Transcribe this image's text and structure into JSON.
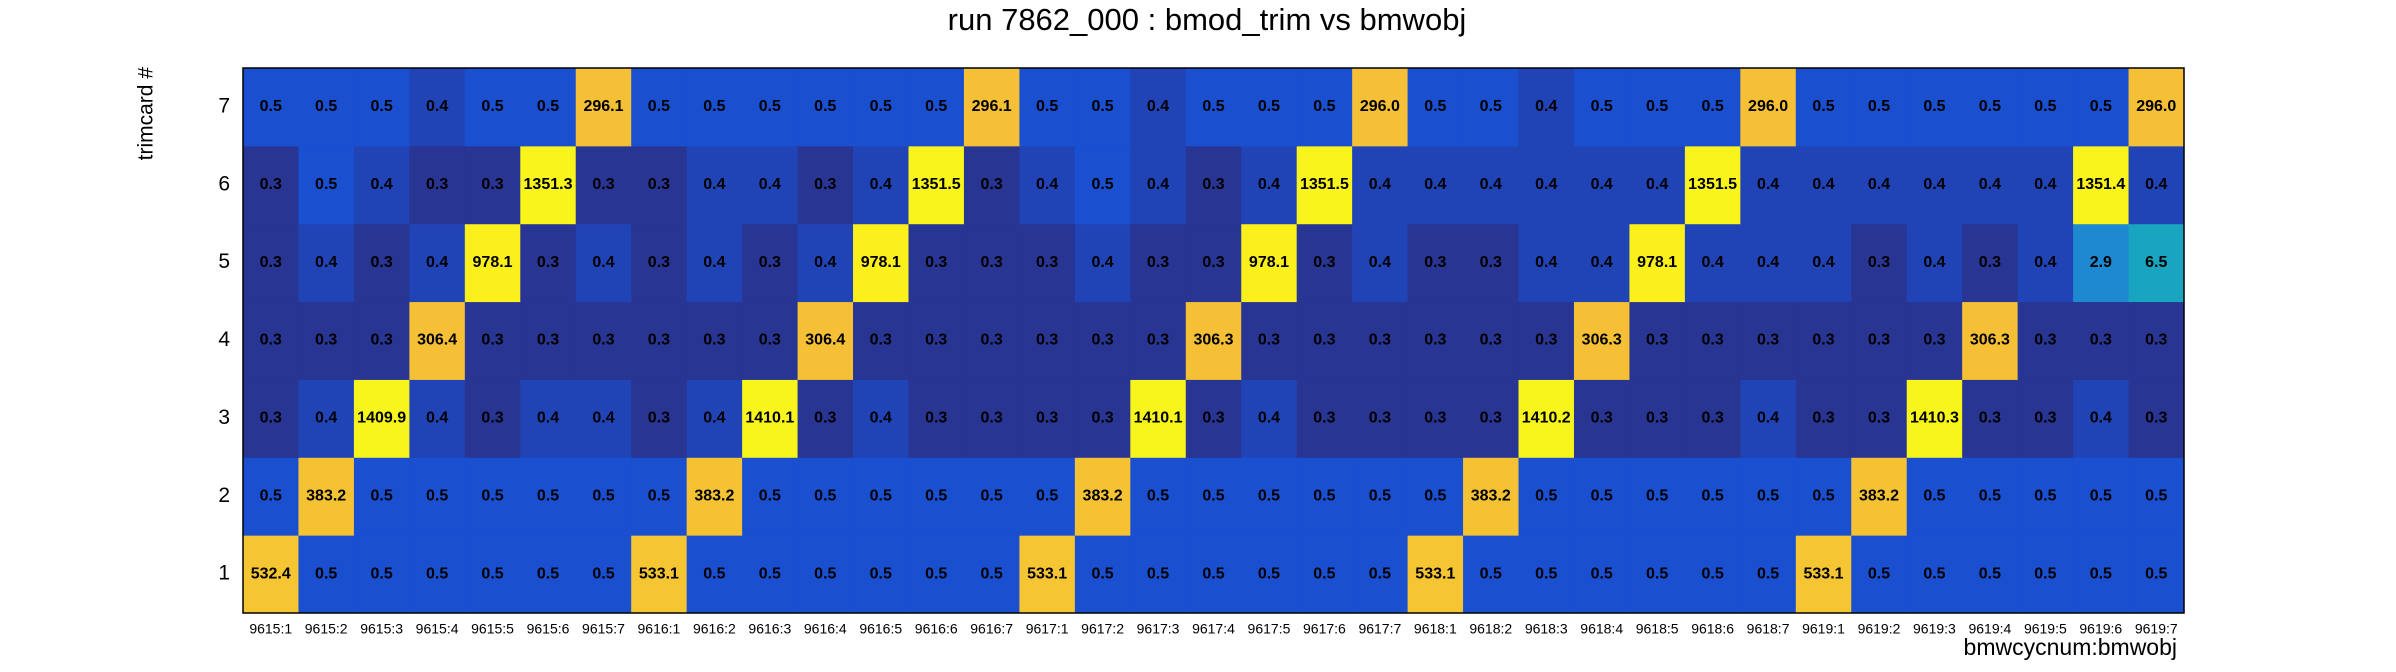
{
  "chart_data": {
    "type": "heatmap",
    "title": "run 7862_000 : bmod_trim vs bmwobj",
    "x_label": "bmwcycnum:bmwobj",
    "y_label": "trimcard #",
    "log_z": true,
    "palette": [
      "#283593",
      "#1a4fd0",
      "#1e88d0",
      "#17a5c0",
      "#f5bf35",
      "#f5c633",
      "#fbee1c",
      "#f8f51c"
    ],
    "categories": [
      "9615:1",
      "9615:2",
      "9615:3",
      "9615:4",
      "9615:5",
      "9615:6",
      "9615:7",
      "9616:1",
      "9616:2",
      "9616:3",
      "9616:4",
      "9616:5",
      "9616:6",
      "9616:7",
      "9617:1",
      "9617:2",
      "9617:3",
      "9617:4",
      "9617:5",
      "9617:6",
      "9617:7",
      "9618:1",
      "9618:2",
      "9618:3",
      "9618:4",
      "9618:5",
      "9618:6",
      "9618:7",
      "9619:1",
      "9619:2",
      "9619:3",
      "9619:4",
      "9619:5",
      "9619:6",
      "9619:7"
    ],
    "y": [
      "1",
      "2",
      "3",
      "4",
      "5",
      "6",
      "7"
    ],
    "values": [
      [
        532.4,
        0.5,
        0.5,
        0.5,
        0.5,
        0.5,
        0.5,
        533.1,
        0.5,
        0.5,
        0.5,
        0.5,
        0.5,
        0.5,
        533.1,
        0.5,
        0.5,
        0.5,
        0.5,
        0.5,
        0.5,
        533.1,
        0.5,
        0.5,
        0.5,
        0.5,
        0.5,
        0.5,
        533.1,
        0.5,
        0.5,
        0.5,
        0.5,
        0.5,
        0.5
      ],
      [
        0.5,
        383.2,
        0.5,
        0.5,
        0.5,
        0.5,
        0.5,
        0.5,
        383.2,
        0.5,
        0.5,
        0.5,
        0.5,
        0.5,
        0.5,
        383.2,
        0.5,
        0.5,
        0.5,
        0.5,
        0.5,
        0.5,
        383.2,
        0.5,
        0.5,
        0.5,
        0.5,
        0.5,
        0.5,
        383.2,
        0.5,
        0.5,
        0.5,
        0.5,
        0.5
      ],
      [
        0.3,
        0.4,
        1409.9,
        0.4,
        0.3,
        0.4,
        0.4,
        0.3,
        0.4,
        1410.1,
        0.3,
        0.4,
        0.3,
        0.3,
        0.3,
        0.3,
        1410.1,
        0.3,
        0.4,
        0.3,
        0.3,
        0.3,
        0.3,
        1410.2,
        0.3,
        0.3,
        0.3,
        0.4,
        0.3,
        0.3,
        1410.3,
        0.3,
        0.3,
        0.4,
        0.3
      ],
      [
        0.3,
        0.3,
        0.3,
        306.4,
        0.3,
        0.3,
        0.3,
        0.3,
        0.3,
        0.3,
        306.4,
        0.3,
        0.3,
        0.3,
        0.3,
        0.3,
        0.3,
        306.3,
        0.3,
        0.3,
        0.3,
        0.3,
        0.3,
        0.3,
        306.3,
        0.3,
        0.3,
        0.3,
        0.3,
        0.3,
        0.3,
        306.3,
        0.3,
        0.3,
        0.3
      ],
      [
        0.3,
        0.4,
        0.3,
        0.4,
        978.1,
        0.3,
        0.4,
        0.3,
        0.4,
        0.3,
        0.4,
        978.1,
        0.3,
        0.3,
        0.3,
        0.4,
        0.3,
        0.3,
        978.1,
        0.3,
        0.4,
        0.3,
        0.3,
        0.4,
        0.4,
        978.1,
        0.4,
        0.4,
        0.4,
        0.3,
        0.4,
        0.3,
        0.4,
        2.9,
        6.5
      ],
      [
        0.3,
        0.5,
        0.4,
        0.3,
        0.3,
        1351.3,
        0.3,
        0.3,
        0.4,
        0.4,
        0.3,
        0.4,
        1351.5,
        0.3,
        0.4,
        0.5,
        0.4,
        0.3,
        0.4,
        1351.5,
        0.4,
        0.4,
        0.4,
        0.4,
        0.4,
        0.4,
        1351.5,
        0.4,
        0.4,
        0.4,
        0.4,
        0.4,
        0.4,
        1351.4,
        0.4
      ],
      [
        0.5,
        0.5,
        0.5,
        0.4,
        0.5,
        0.5,
        296.1,
        0.5,
        0.5,
        0.5,
        0.5,
        0.5,
        0.5,
        296.1,
        0.5,
        0.5,
        0.4,
        0.5,
        0.5,
        0.5,
        296.0,
        0.5,
        0.5,
        0.4,
        0.5,
        0.5,
        0.5,
        296.0,
        0.5,
        0.5,
        0.5,
        0.5,
        0.5,
        0.5,
        296.0
      ]
    ],
    "value_labels": [
      [
        "532.4",
        "0.5",
        "0.5",
        "0.5",
        "0.5",
        "0.5",
        "0.5",
        "533.1",
        "0.5",
        "0.5",
        "0.5",
        "0.5",
        "0.5",
        "0.5",
        "533.1",
        "0.5",
        "0.5",
        "0.5",
        "0.5",
        "0.5",
        "0.5",
        "533.1",
        "0.5",
        "0.5",
        "0.5",
        "0.5",
        "0.5",
        "0.5",
        "533.1",
        "0.5",
        "0.5",
        "0.5",
        "0.5",
        "0.5",
        "0.5"
      ],
      [
        "0.5",
        "383.2",
        "0.5",
        "0.5",
        "0.5",
        "0.5",
        "0.5",
        "0.5",
        "383.2",
        "0.5",
        "0.5",
        "0.5",
        "0.5",
        "0.5",
        "0.5",
        "383.2",
        "0.5",
        "0.5",
        "0.5",
        "0.5",
        "0.5",
        "0.5",
        "383.2",
        "0.5",
        "0.5",
        "0.5",
        "0.5",
        "0.5",
        "0.5",
        "383.2",
        "0.5",
        "0.5",
        "0.5",
        "0.5",
        "0.5"
      ],
      [
        "0.3",
        "0.4",
        "1409.9",
        "0.4",
        "0.3",
        "0.4",
        "0.4",
        "0.3",
        "0.4",
        "1410.1",
        "0.3",
        "0.4",
        "0.3",
        "0.3",
        "0.3",
        "0.3",
        "1410.1",
        "0.3",
        "0.4",
        "0.3",
        "0.3",
        "0.3",
        "0.3",
        "1410.2",
        "0.3",
        "0.3",
        "0.3",
        "0.4",
        "0.3",
        "0.3",
        "1410.3",
        "0.3",
        "0.3",
        "0.4",
        "0.3"
      ],
      [
        "0.3",
        "0.3",
        "0.3",
        "306.4",
        "0.3",
        "0.3",
        "0.3",
        "0.3",
        "0.3",
        "0.3",
        "306.4",
        "0.3",
        "0.3",
        "0.3",
        "0.3",
        "0.3",
        "0.3",
        "306.3",
        "0.3",
        "0.3",
        "0.3",
        "0.3",
        "0.3",
        "0.3",
        "306.3",
        "0.3",
        "0.3",
        "0.3",
        "0.3",
        "0.3",
        "0.3",
        "306.3",
        "0.3",
        "0.3",
        "0.3"
      ],
      [
        "0.3",
        "0.4",
        "0.3",
        "0.4",
        "978.1",
        "0.3",
        "0.4",
        "0.3",
        "0.4",
        "0.3",
        "0.4",
        "978.1",
        "0.3",
        "0.3",
        "0.3",
        "0.4",
        "0.3",
        "0.3",
        "978.1",
        "0.3",
        "0.4",
        "0.3",
        "0.3",
        "0.4",
        "0.4",
        "978.1",
        "0.4",
        "0.4",
        "0.4",
        "0.3",
        "0.4",
        "0.3",
        "0.4",
        "2.9",
        "6.5"
      ],
      [
        "0.3",
        "0.5",
        "0.4",
        "0.3",
        "0.3",
        "1351.3",
        "0.3",
        "0.3",
        "0.4",
        "0.4",
        "0.3",
        "0.4",
        "1351.5",
        "0.3",
        "0.4",
        "0.5",
        "0.4",
        "0.3",
        "0.4",
        "1351.5",
        "0.4",
        "0.4",
        "0.4",
        "0.4",
        "0.4",
        "0.4",
        "1351.5",
        "0.4",
        "0.4",
        "0.4",
        "0.4",
        "0.4",
        "0.4",
        "1351.4",
        "0.4"
      ],
      [
        "0.5",
        "0.5",
        "0.5",
        "0.4",
        "0.5",
        "0.5",
        "296.1",
        "0.5",
        "0.5",
        "0.5",
        "0.5",
        "0.5",
        "0.5",
        "296.1",
        "0.5",
        "0.5",
        "0.4",
        "0.5",
        "0.5",
        "0.5",
        "296.0",
        "0.5",
        "0.5",
        "0.4",
        "0.5",
        "0.5",
        "0.5",
        "296.0",
        "0.5",
        "0.5",
        "0.5",
        "0.5",
        "0.5",
        "0.5",
        "296.0"
      ]
    ]
  }
}
